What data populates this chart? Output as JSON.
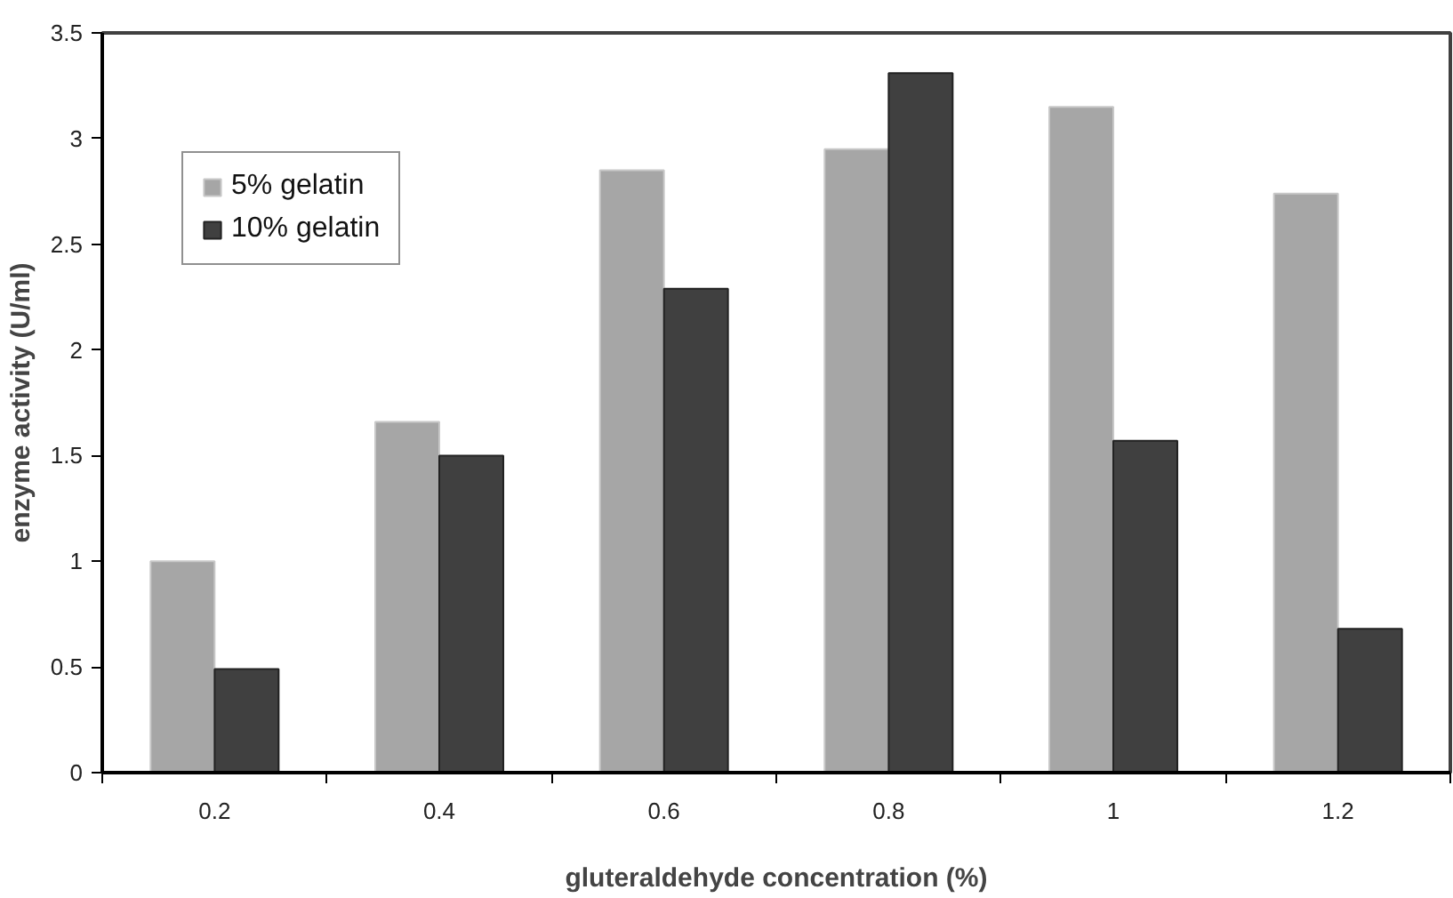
{
  "chart_data": {
    "type": "bar",
    "xlabel": "gluteraldehyde concentration (%)",
    "ylabel": "enzyme activity (U/ml)",
    "categories": [
      "0.2",
      "0.4",
      "0.6",
      "0.8",
      "1",
      "1.2"
    ],
    "series": [
      {
        "name": "5% gelatin",
        "color": "#a6a6a6",
        "values": [
          1.0,
          1.66,
          2.85,
          2.95,
          3.15,
          2.74
        ]
      },
      {
        "name": "10% gelatin",
        "color": "#404040",
        "values": [
          0.49,
          1.5,
          2.29,
          3.31,
          1.57,
          0.68
        ]
      }
    ],
    "ylim": [
      0,
      3.5
    ],
    "yticks": [
      0,
      0.5,
      1,
      1.5,
      2,
      2.5,
      3,
      3.5
    ],
    "grid": false,
    "legend": "top left"
  }
}
